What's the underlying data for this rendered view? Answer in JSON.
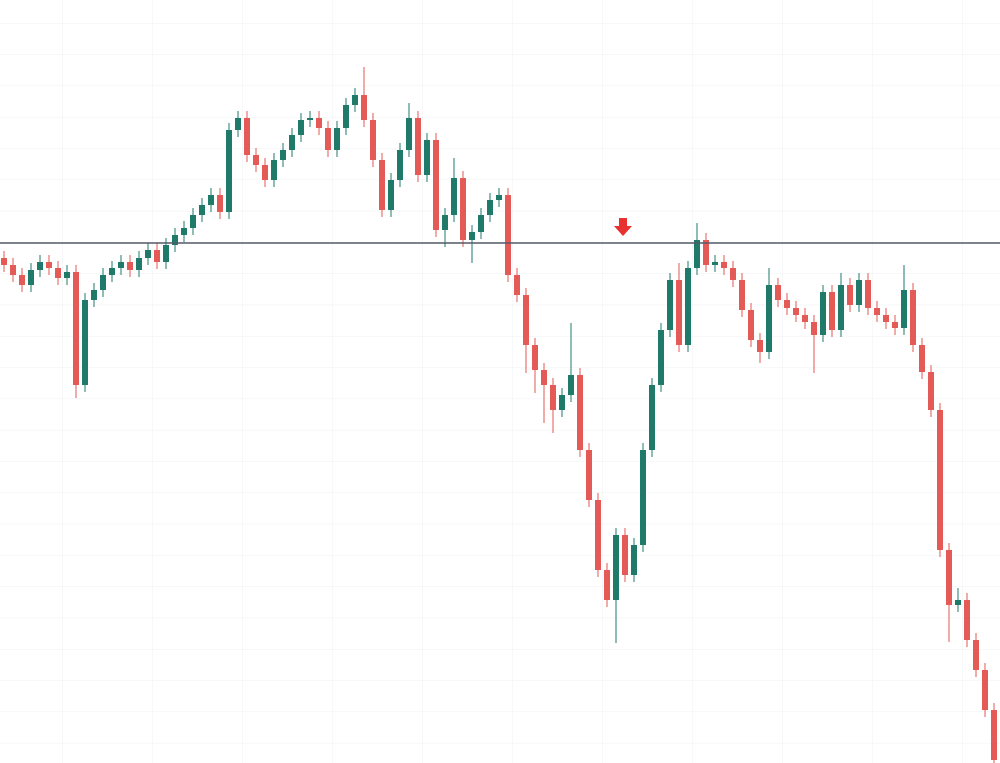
{
  "chart_data": {
    "type": "candlestick",
    "ylim": [
      0,
      763
    ],
    "up_color": "#1f7a6a",
    "down_color": "#e35a56",
    "hline": 520,
    "hline_color": "#555a66",
    "open": [
      505,
      498,
      488,
      478,
      493,
      501,
      495,
      485,
      491,
      378,
      463,
      473,
      488,
      495,
      501,
      493,
      505,
      513,
      501,
      518,
      528,
      535,
      548,
      558,
      568,
      551,
      633,
      645,
      608,
      598,
      583,
      603,
      613,
      628,
      643,
      645,
      635,
      613,
      635,
      658,
      668,
      643,
      603,
      553,
      583,
      613,
      645,
      588,
      623,
      533,
      548,
      585,
      523,
      531,
      548,
      563,
      568,
      488,
      468,
      418,
      393,
      378,
      353,
      368,
      388,
      313,
      263,
      193,
      163,
      228,
      188,
      218,
      313,
      378,
      433,
      483,
      418,
      495,
      523,
      498,
      501,
      495,
      483,
      453,
      423,
      411,
      478,
      463,
      455,
      448,
      441,
      428,
      471,
      433,
      478,
      458,
      483,
      455,
      448,
      441,
      435,
      473,
      418,
      391,
      353,
      213,
      158,
      163,
      123,
      93,
      53
    ],
    "high": [
      512,
      505,
      495,
      500,
      508,
      508,
      502,
      498,
      498,
      470,
      480,
      495,
      502,
      508,
      508,
      512,
      520,
      520,
      525,
      535,
      542,
      555,
      565,
      575,
      575,
      640,
      652,
      652,
      615,
      605,
      610,
      620,
      635,
      650,
      652,
      652,
      642,
      642,
      665,
      675,
      696,
      650,
      610,
      590,
      620,
      660,
      652,
      630,
      630,
      555,
      605,
      592,
      538,
      555,
      570,
      575,
      575,
      495,
      475,
      425,
      400,
      385,
      375,
      440,
      395,
      320,
      270,
      200,
      235,
      235,
      225,
      320,
      385,
      440,
      490,
      500,
      502,
      540,
      530,
      508,
      508,
      502,
      490,
      460,
      430,
      495,
      485,
      470,
      462,
      455,
      448,
      478,
      478,
      490,
      485,
      490,
      490,
      462,
      455,
      448,
      498,
      480,
      425,
      398,
      360,
      220,
      175,
      170,
      130,
      100,
      60
    ],
    "low": [
      491,
      481,
      471,
      471,
      486,
      488,
      478,
      478,
      365,
      371,
      456,
      466,
      481,
      488,
      486,
      486,
      498,
      494,
      494,
      511,
      521,
      528,
      541,
      551,
      544,
      544,
      626,
      601,
      591,
      576,
      576,
      596,
      606,
      621,
      636,
      628,
      606,
      606,
      628,
      651,
      636,
      596,
      546,
      546,
      576,
      606,
      581,
      581,
      526,
      516,
      541,
      516,
      500,
      524,
      541,
      556,
      481,
      461,
      390,
      370,
      340,
      330,
      346,
      361,
      306,
      256,
      186,
      156,
      120,
      181,
      181,
      211,
      306,
      371,
      426,
      411,
      411,
      488,
      491,
      491,
      488,
      476,
      446,
      416,
      400,
      404,
      456,
      448,
      441,
      434,
      390,
      421,
      426,
      426,
      451,
      451,
      448,
      441,
      434,
      428,
      428,
      411,
      384,
      346,
      206,
      121,
      151,
      116,
      86,
      46,
      0
    ],
    "close": [
      498,
      488,
      478,
      493,
      501,
      495,
      485,
      491,
      378,
      463,
      473,
      488,
      495,
      501,
      493,
      505,
      513,
      501,
      518,
      528,
      535,
      548,
      558,
      568,
      551,
      633,
      645,
      608,
      598,
      583,
      603,
      613,
      628,
      643,
      645,
      635,
      613,
      635,
      658,
      668,
      643,
      603,
      553,
      583,
      613,
      645,
      588,
      623,
      533,
      548,
      585,
      523,
      531,
      548,
      563,
      568,
      488,
      468,
      418,
      393,
      378,
      353,
      368,
      388,
      313,
      263,
      193,
      163,
      228,
      188,
      218,
      313,
      378,
      433,
      483,
      418,
      495,
      523,
      498,
      501,
      495,
      483,
      453,
      423,
      411,
      478,
      463,
      455,
      448,
      441,
      428,
      471,
      433,
      478,
      458,
      483,
      455,
      448,
      441,
      435,
      473,
      418,
      391,
      353,
      213,
      158,
      163,
      123,
      93,
      53,
      3
    ]
  }
}
